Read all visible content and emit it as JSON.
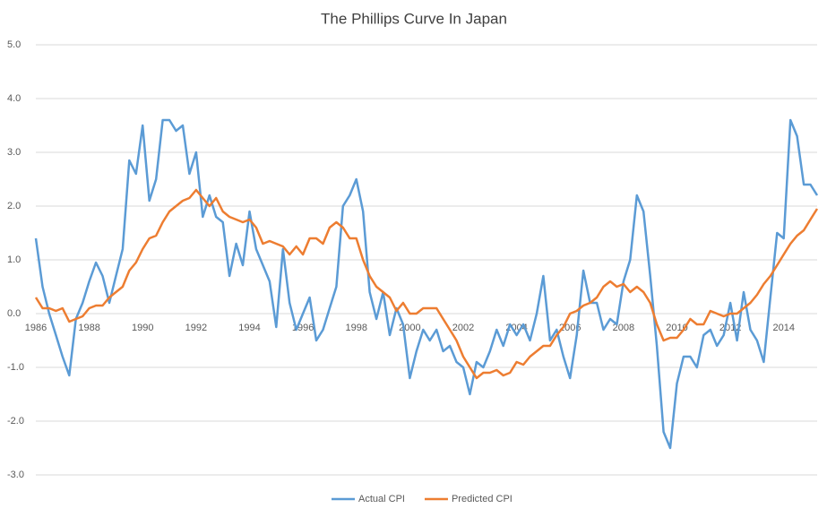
{
  "chart_data": {
    "type": "line",
    "title": "The Phillips Curve In Japan",
    "x": [
      1986,
      1986.25,
      1986.5,
      1986.75,
      1987,
      1987.25,
      1987.5,
      1987.75,
      1988,
      1988.25,
      1988.5,
      1988.75,
      1989,
      1989.25,
      1989.5,
      1989.75,
      1990,
      1990.25,
      1990.5,
      1990.75,
      1991,
      1991.25,
      1991.5,
      1991.75,
      1992,
      1992.25,
      1992.5,
      1992.75,
      1993,
      1993.25,
      1993.5,
      1993.75,
      1994,
      1994.25,
      1994.5,
      1994.75,
      1995,
      1995.25,
      1995.5,
      1995.75,
      1996,
      1996.25,
      1996.5,
      1996.75,
      1997,
      1997.25,
      1997.5,
      1997.75,
      1998,
      1998.25,
      1998.5,
      1998.75,
      1999,
      1999.25,
      1999.5,
      1999.75,
      2000,
      2000.25,
      2000.5,
      2000.75,
      2001,
      2001.25,
      2001.5,
      2001.75,
      2002,
      2002.25,
      2002.5,
      2002.75,
      2003,
      2003.25,
      2003.5,
      2003.75,
      2004,
      2004.25,
      2004.5,
      2004.75,
      2005,
      2005.25,
      2005.5,
      2005.75,
      2006,
      2006.25,
      2006.5,
      2006.75,
      2007,
      2007.25,
      2007.5,
      2007.75,
      2008,
      2008.25,
      2008.5,
      2008.75,
      2009,
      2009.25,
      2009.5,
      2009.75,
      2010,
      2010.25,
      2010.5,
      2010.75,
      2011,
      2011.25,
      2011.5,
      2011.75,
      2012,
      2012.25,
      2012.5,
      2012.75,
      2013,
      2013.25,
      2013.5,
      2013.75,
      2014,
      2014.25,
      2014.5,
      2014.75,
      2015,
      2015.25
    ],
    "series": [
      {
        "name": "Actual CPI",
        "color": "#5b9bd5",
        "values": [
          1.4,
          0.5,
          0.0,
          -0.4,
          -0.8,
          -1.15,
          -0.1,
          0.2,
          0.6,
          0.95,
          0.7,
          0.2,
          0.7,
          1.2,
          2.85,
          2.6,
          3.5,
          2.1,
          2.5,
          3.6,
          3.6,
          3.4,
          3.5,
          2.6,
          3.0,
          1.8,
          2.2,
          1.8,
          1.7,
          0.7,
          1.3,
          0.9,
          1.9,
          1.2,
          0.9,
          0.6,
          -0.25,
          1.2,
          0.2,
          -0.3,
          0.0,
          0.3,
          -0.5,
          -0.3,
          0.1,
          0.5,
          2.0,
          2.2,
          2.5,
          1.9,
          0.4,
          -0.1,
          0.4,
          -0.4,
          0.1,
          -0.2,
          -1.2,
          -0.7,
          -0.3,
          -0.5,
          -0.3,
          -0.7,
          -0.6,
          -0.9,
          -1.0,
          -1.5,
          -0.9,
          -1.0,
          -0.7,
          -0.3,
          -0.6,
          -0.2,
          -0.4,
          -0.2,
          -0.5,
          0.0,
          0.7,
          -0.5,
          -0.3,
          -0.8,
          -1.2,
          -0.4,
          0.8,
          0.2,
          0.2,
          -0.3,
          -0.1,
          -0.2,
          0.6,
          1.0,
          2.2,
          1.9,
          0.7,
          -0.6,
          -2.2,
          -2.5,
          -1.3,
          -0.8,
          -0.8,
          -1.0,
          -0.4,
          -0.3,
          -0.6,
          -0.4,
          0.2,
          -0.5,
          0.4,
          -0.3,
          -0.5,
          -0.9,
          0.3,
          1.5,
          1.4,
          3.6,
          3.3,
          2.4,
          2.4,
          2.2
        ]
      },
      {
        "name": "Predicted CPI",
        "color": "#ed7d31",
        "values": [
          0.3,
          0.1,
          0.1,
          0.05,
          0.1,
          -0.15,
          -0.1,
          -0.05,
          0.1,
          0.15,
          0.15,
          0.3,
          0.4,
          0.5,
          0.8,
          0.95,
          1.2,
          1.4,
          1.45,
          1.7,
          1.9,
          2.0,
          2.1,
          2.15,
          2.3,
          2.15,
          2.0,
          2.15,
          1.9,
          1.8,
          1.75,
          1.7,
          1.75,
          1.6,
          1.3,
          1.35,
          1.3,
          1.25,
          1.1,
          1.25,
          1.1,
          1.4,
          1.4,
          1.3,
          1.6,
          1.7,
          1.6,
          1.4,
          1.4,
          1.0,
          0.7,
          0.5,
          0.4,
          0.3,
          0.05,
          0.2,
          0.0,
          0.0,
          0.1,
          0.1,
          0.1,
          -0.1,
          -0.3,
          -0.5,
          -0.8,
          -1.0,
          -1.2,
          -1.1,
          -1.1,
          -1.05,
          -1.15,
          -1.1,
          -0.9,
          -0.95,
          -0.8,
          -0.7,
          -0.6,
          -0.6,
          -0.4,
          -0.25,
          0.0,
          0.05,
          0.15,
          0.2,
          0.3,
          0.5,
          0.6,
          0.5,
          0.55,
          0.4,
          0.5,
          0.4,
          0.2,
          -0.2,
          -0.5,
          -0.45,
          -0.45,
          -0.3,
          -0.1,
          -0.2,
          -0.2,
          0.05,
          0.0,
          -0.05,
          0.0,
          0.0,
          0.1,
          0.2,
          0.35,
          0.55,
          0.7,
          0.9,
          1.1,
          1.3,
          1.45,
          1.55,
          1.75,
          1.95
        ]
      }
    ],
    "xlim": [
      1986,
      2015.25
    ],
    "xticks": [
      1986,
      1988,
      1990,
      1992,
      1994,
      1996,
      1998,
      2000,
      2002,
      2004,
      2006,
      2008,
      2010,
      2012,
      2014
    ],
    "ylim": [
      -3,
      5
    ],
    "yticks": [
      {
        "value": -3,
        "label": "-3.0"
      },
      {
        "value": -2,
        "label": "-2.0"
      },
      {
        "value": -1,
        "label": "-1.0"
      },
      {
        "value": 0,
        "label": "0.0"
      },
      {
        "value": 1,
        "label": "1.0"
      },
      {
        "value": 2,
        "label": "2.0"
      },
      {
        "value": 3,
        "label": "3.0"
      },
      {
        "value": 4,
        "label": "4.0"
      },
      {
        "value": 5,
        "label": "5.0"
      }
    ],
    "grid": true,
    "legend": "bottom"
  }
}
